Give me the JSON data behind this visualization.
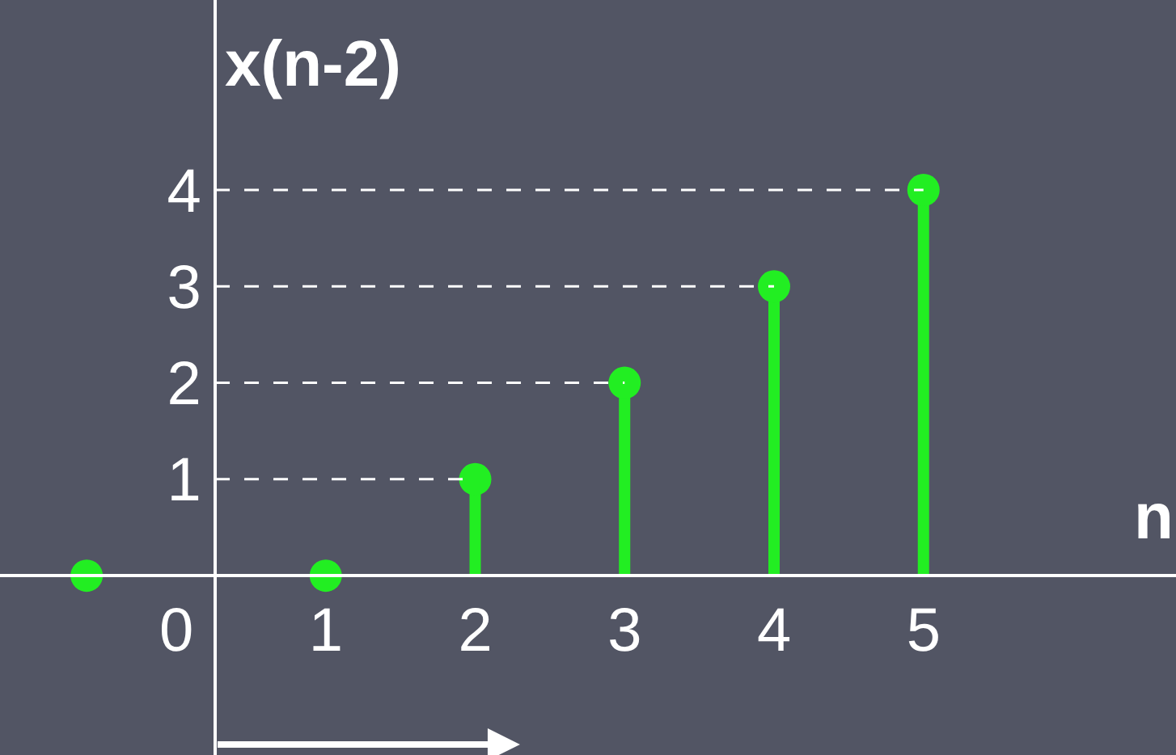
{
  "chart_data": {
    "type": "lollipop",
    "xlabel": "n",
    "ylabel": "x(n-2)",
    "x": [
      -0.6,
      1,
      2,
      3,
      4,
      5
    ],
    "series": [
      {
        "color": "#22ee22",
        "values": [
          0,
          0,
          1,
          2,
          3,
          4
        ]
      }
    ],
    "xlim": [
      -1.18,
      6.69
    ],
    "ylim": [
      -1.86,
      5.97
    ],
    "xticks": [
      0,
      1,
      2,
      3,
      4,
      5
    ],
    "yticks": [
      1,
      2,
      3,
      4
    ],
    "ref_lines": [
      {
        "axis": "y",
        "value": 1,
        "label": null,
        "color": "#ffffff",
        "line_style": "dashed"
      },
      {
        "axis": "y",
        "value": 2,
        "label": null,
        "color": "#ffffff",
        "line_style": "dashed"
      },
      {
        "axis": "y",
        "value": 3,
        "label": null,
        "color": "#ffffff",
        "line_style": "dashed"
      },
      {
        "axis": "y",
        "value": 4,
        "label": null,
        "color": "#ffffff",
        "line_style": "dashed"
      }
    ],
    "marker": "circle"
  }
}
